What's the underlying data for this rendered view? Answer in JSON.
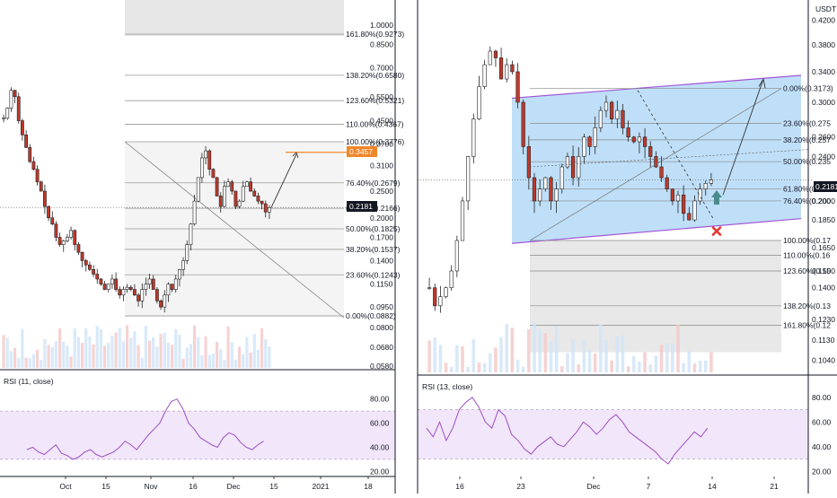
{
  "left_chart": {
    "price_axis": [
      "1.0000",
      "0.8500",
      "0.7000",
      "0.5500",
      "0.4500",
      "0.3700",
      "0.3100",
      "0.2500",
      "0.2000",
      "0.1700",
      "0.1400",
      "0.1150",
      "0.0950",
      "0.0800",
      "0.0680",
      "0.0580"
    ],
    "fib_levels": [
      {
        "label": "161.80%(0.9273)",
        "value": 0.9273
      },
      {
        "label": "138.20%(0.6580)",
        "value": 0.658
      },
      {
        "label": "123.60%(0.5321)",
        "value": 0.5321
      },
      {
        "label": "110.00%(0.4367)",
        "value": 0.4367
      },
      {
        "label": "100.00%(0.3776)",
        "value": 0.3776
      },
      {
        "label": "76.40%(0.2679)",
        "value": 0.2679
      },
      {
        "label": "61.80%(0.2166)",
        "value": 0.2166
      },
      {
        "label": "50.00%(0.1825)",
        "value": 0.1825
      },
      {
        "label": "38.20%(0.1537)",
        "value": 0.1537
      },
      {
        "label": "23.60%(0.1243)",
        "value": 0.1243
      },
      {
        "label": "0.00%(0.0882)",
        "value": 0.0882
      }
    ],
    "current_price": "0.2181",
    "target_price": "0.3457",
    "date_axis": [
      "Oct",
      "15",
      "Nov",
      "16",
      "Dec",
      "15",
      "2021",
      "18"
    ],
    "rsi_label": "RSI (11, close)",
    "rsi_axis": [
      "80.00",
      "60.00",
      "40.00",
      "20.00"
    ],
    "rsi_band": [
      30,
      70
    ]
  },
  "right_chart": {
    "currency": "USDT",
    "price_axis": [
      "0.4200",
      "0.3800",
      "0.3400",
      "0.3000",
      "0.2600",
      "0.2400",
      "0.2000",
      "0.1850",
      "0.1650",
      "0.1500",
      "0.1400",
      "0.1230",
      "0.1130",
      "0.1040"
    ],
    "fib_levels": [
      {
        "label": "0.00%(0.3173)",
        "value": 0.3173
      },
      {
        "label": "23.60%(0.275",
        "value": 0.275
      },
      {
        "label": "38.20%(0.257",
        "value": 0.257
      },
      {
        "label": "50.00%(0.235",
        "value": 0.235
      },
      {
        "label": "61.80%(0.21",
        "value": 0.21
      },
      {
        "label": "76.40%(0.200",
        "value": 0.2
      },
      {
        "label": "100.00%(0.17",
        "value": 0.17
      },
      {
        "label": "110.00%(0.16",
        "value": 0.16
      },
      {
        "label": "123.60%(0.15",
        "value": 0.15
      },
      {
        "label": "138.20%(0.13",
        "value": 0.13
      },
      {
        "label": "161.80%(0.12",
        "value": 0.12
      }
    ],
    "current_price": "0.2181",
    "date_axis": [
      "16",
      "23",
      "Dec",
      "7",
      "14",
      "21"
    ],
    "rsi_label": "RSI (13, close)",
    "rsi_axis": [
      "80.00",
      "60.00",
      "40.00",
      "20.00"
    ],
    "rsi_band": [
      30,
      70
    ]
  },
  "colors": {
    "up": "#ffffff",
    "down": "#c0392b",
    "candle_border": "#222222",
    "rsi_line": "#9c4fc2",
    "rsi_band_fill": "#f2e6fa",
    "channel_fill": "#a9d4f5",
    "channel_edge": "#a054d8",
    "target_orange": "#f0862a",
    "fib_shade": "#ebebeb",
    "up_arrow": "#4a8c8c",
    "cross": "#e53935"
  }
}
